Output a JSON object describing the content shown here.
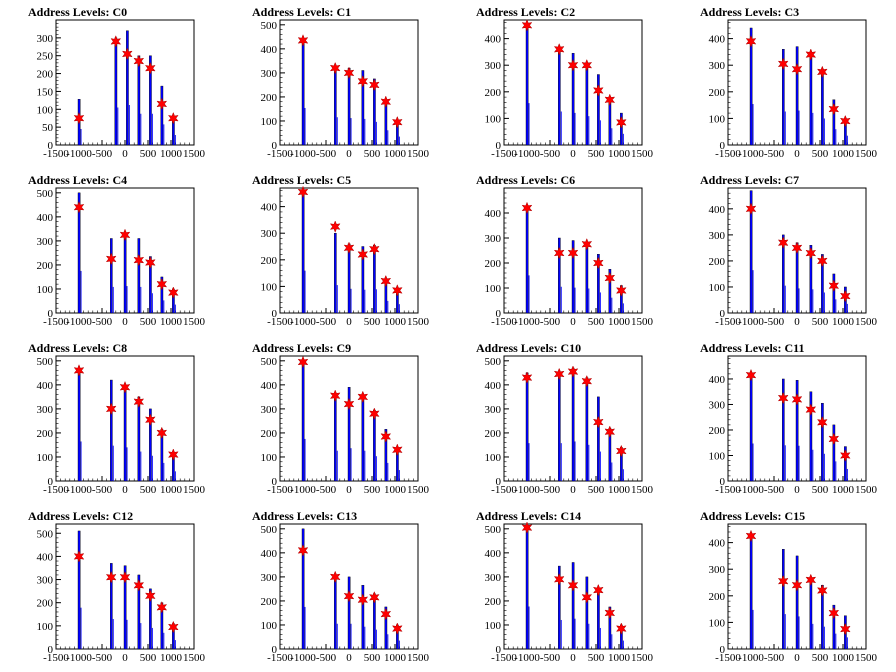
{
  "chart_data": [
    {
      "type": "bar",
      "title": "Address Levels: C0",
      "xlim": [
        -1500,
        1500
      ],
      "ylim": [
        0,
        350
      ],
      "yticks": [
        0,
        50,
        100,
        150,
        200,
        250,
        300
      ],
      "xticks": [
        -1500,
        -1000,
        -500,
        0,
        500,
        1000,
        1500
      ],
      "xtick_labels": [
        "-1500",
        "-1000",
        "-500",
        "0",
        "500",
        "1000",
        "1500"
      ],
      "series": [
        {
          "x": [
            -1000,
            -200,
            50,
            300,
            550,
            800,
            1050
          ],
          "values": [
            128,
            300,
            320,
            250,
            250,
            165,
            80
          ]
        }
      ],
      "markers": [
        {
          "x": [
            -1000,
            -200,
            50,
            300,
            550,
            800,
            1050
          ],
          "values": [
            75,
            290,
            255,
            235,
            215,
            115,
            75
          ]
        }
      ]
    },
    {
      "type": "bar",
      "title": "Address Levels: C1",
      "xlim": [
        -1500,
        1500
      ],
      "ylim": [
        0,
        520
      ],
      "yticks": [
        0,
        100,
        200,
        300,
        400,
        500
      ],
      "xticks": [
        -1500,
        -1000,
        -500,
        0,
        500,
        1000,
        1500
      ],
      "xtick_labels": [
        "-1500",
        "-1000",
        "-500",
        "0",
        "500",
        "1000",
        "1500"
      ],
      "series": [
        {
          "x": [
            -1000,
            -300,
            0,
            300,
            550,
            800,
            1050
          ],
          "values": [
            440,
            330,
            320,
            310,
            275,
            175,
            100
          ]
        }
      ],
      "markers": [
        {
          "x": [
            -1000,
            -300,
            0,
            300,
            550,
            800,
            1050
          ],
          "values": [
            435,
            320,
            300,
            265,
            250,
            180,
            95
          ]
        }
      ]
    },
    {
      "type": "bar",
      "title": "Address Levels: C2",
      "xlim": [
        -1500,
        1500
      ],
      "ylim": [
        0,
        470
      ],
      "yticks": [
        0,
        100,
        200,
        300,
        400
      ],
      "xticks": [
        -1500,
        -1000,
        -500,
        0,
        500,
        1000,
        1500
      ],
      "xtick_labels": [
        "-1500",
        "-1000",
        "-500",
        "0",
        "500",
        "1000",
        "1500"
      ],
      "series": [
        {
          "x": [
            -1000,
            -300,
            0,
            300,
            550,
            800,
            1050
          ],
          "values": [
            450,
            360,
            345,
            310,
            265,
            180,
            120
          ]
        }
      ],
      "markers": [
        {
          "x": [
            -1000,
            -300,
            0,
            300,
            550,
            800,
            1050
          ],
          "values": [
            450,
            360,
            300,
            300,
            205,
            170,
            85
          ]
        }
      ]
    },
    {
      "type": "bar",
      "title": "Address Levels: C3",
      "xlim": [
        -1500,
        1500
      ],
      "ylim": [
        0,
        470
      ],
      "yticks": [
        0,
        100,
        200,
        300,
        400
      ],
      "xticks": [
        -1500,
        -1000,
        -500,
        0,
        500,
        1000,
        1500
      ],
      "xtick_labels": [
        "-1500",
        "-1000",
        "-500",
        "0",
        "500",
        "1000",
        "1500"
      ],
      "series": [
        {
          "x": [
            -1000,
            -300,
            0,
            300,
            550,
            800,
            1050
          ],
          "values": [
            440,
            360,
            370,
            345,
            285,
            170,
            100
          ]
        }
      ],
      "markers": [
        {
          "x": [
            -1000,
            -300,
            0,
            300,
            550,
            800,
            1050
          ],
          "values": [
            390,
            305,
            285,
            340,
            275,
            135,
            90
          ]
        }
      ]
    },
    {
      "type": "bar",
      "title": "Address Levels: C4",
      "xlim": [
        -1500,
        1500
      ],
      "ylim": [
        0,
        520
      ],
      "yticks": [
        0,
        100,
        200,
        300,
        400,
        500
      ],
      "xticks": [
        -1500,
        -1000,
        -500,
        0,
        500,
        1000,
        1500
      ],
      "xtick_labels": [
        "-1500",
        "-1000",
        "-500",
        "0",
        "500",
        "1000",
        "1500"
      ],
      "series": [
        {
          "x": [
            -1000,
            -300,
            0,
            300,
            550,
            800,
            1050
          ],
          "values": [
            500,
            310,
            320,
            310,
            235,
            150,
            100
          ]
        }
      ],
      "markers": [
        {
          "x": [
            -1000,
            -300,
            0,
            300,
            550,
            800,
            1050
          ],
          "values": [
            440,
            225,
            325,
            220,
            210,
            120,
            85
          ]
        }
      ]
    },
    {
      "type": "bar",
      "title": "Address Levels: C5",
      "xlim": [
        -1500,
        1500
      ],
      "ylim": [
        0,
        470
      ],
      "yticks": [
        0,
        100,
        200,
        300,
        400
      ],
      "xticks": [
        -1500,
        -1000,
        -500,
        0,
        500,
        1000,
        1500
      ],
      "xtick_labels": [
        "-1500",
        "-1000",
        "-500",
        "0",
        "500",
        "1000",
        "1500"
      ],
      "series": [
        {
          "x": [
            -1000,
            -300,
            0,
            300,
            550,
            800,
            1050
          ],
          "values": [
            455,
            300,
            260,
            250,
            255,
            130,
            95
          ]
        }
      ],
      "markers": [
        {
          "x": [
            -1000,
            -300,
            0,
            300,
            550,
            800,
            1050
          ],
          "values": [
            455,
            325,
            245,
            220,
            240,
            120,
            85
          ]
        }
      ]
    },
    {
      "type": "bar",
      "title": "Address Levels: C6",
      "xlim": [
        -1500,
        1500
      ],
      "ylim": [
        0,
        500
      ],
      "yticks": [
        0,
        100,
        200,
        300,
        400
      ],
      "xticks": [
        -1500,
        -1000,
        -500,
        0,
        500,
        1000,
        1500
      ],
      "xtick_labels": [
        "-1500",
        "-1000",
        "-500",
        "0",
        "500",
        "1000",
        "1500"
      ],
      "series": [
        {
          "x": [
            -1000,
            -300,
            0,
            300,
            550,
            800,
            1050
          ],
          "values": [
            430,
            300,
            290,
            280,
            235,
            175,
            110
          ]
        }
      ],
      "markers": [
        {
          "x": [
            -1000,
            -300,
            0,
            300,
            550,
            800,
            1050
          ],
          "values": [
            420,
            240,
            240,
            275,
            200,
            140,
            90
          ]
        }
      ]
    },
    {
      "type": "bar",
      "title": "Address Levels: C7",
      "xlim": [
        -1500,
        1500
      ],
      "ylim": [
        0,
        480
      ],
      "yticks": [
        0,
        100,
        200,
        300,
        400
      ],
      "xticks": [
        -1500,
        -1000,
        -500,
        0,
        500,
        1000,
        1500
      ],
      "xtick_labels": [
        "-1500",
        "-1000",
        "-500",
        "0",
        "500",
        "1000",
        "1500"
      ],
      "series": [
        {
          "x": [
            -1000,
            -300,
            0,
            300,
            550,
            800,
            1050
          ],
          "values": [
            470,
            300,
            270,
            260,
            225,
            150,
            100
          ]
        }
      ],
      "markers": [
        {
          "x": [
            -1000,
            -300,
            0,
            300,
            550,
            800,
            1050
          ],
          "values": [
            400,
            270,
            250,
            230,
            200,
            105,
            65
          ]
        }
      ]
    },
    {
      "type": "bar",
      "title": "Address Levels: C8",
      "xlim": [
        -1500,
        1500
      ],
      "ylim": [
        0,
        520
      ],
      "yticks": [
        0,
        100,
        200,
        300,
        400,
        500
      ],
      "xticks": [
        -1500,
        -1000,
        -500,
        0,
        500,
        1000,
        1500
      ],
      "xtick_labels": [
        "-1500",
        "-1000",
        "-500",
        "0",
        "500",
        "1000",
        "1500"
      ],
      "series": [
        {
          "x": [
            -1000,
            -300,
            0,
            300,
            550,
            800,
            1050
          ],
          "values": [
            470,
            420,
            400,
            350,
            300,
            215,
            115
          ]
        }
      ],
      "markers": [
        {
          "x": [
            -1000,
            -300,
            0,
            300,
            550,
            800,
            1050
          ],
          "values": [
            460,
            300,
            390,
            330,
            255,
            200,
            110
          ]
        }
      ]
    },
    {
      "type": "bar",
      "title": "Address Levels: C9",
      "xlim": [
        -1500,
        1500
      ],
      "ylim": [
        0,
        520
      ],
      "yticks": [
        0,
        100,
        200,
        300,
        400,
        500
      ],
      "xticks": [
        -1500,
        -1000,
        -500,
        0,
        500,
        1000,
        1500
      ],
      "xtick_labels": [
        "-1500",
        "-1000",
        "-500",
        "0",
        "500",
        "1000",
        "1500"
      ],
      "series": [
        {
          "x": [
            -1000,
            -300,
            0,
            300,
            550,
            800,
            1050
          ],
          "values": [
            500,
            360,
            390,
            360,
            295,
            215,
            130
          ]
        }
      ],
      "markers": [
        {
          "x": [
            -1000,
            -300,
            0,
            300,
            550,
            800,
            1050
          ],
          "values": [
            495,
            355,
            320,
            350,
            280,
            185,
            130
          ]
        }
      ]
    },
    {
      "type": "bar",
      "title": "Address Levels: C10",
      "xlim": [
        -1500,
        1500
      ],
      "ylim": [
        0,
        520
      ],
      "yticks": [
        0,
        100,
        200,
        300,
        400,
        500
      ],
      "xticks": [
        -1500,
        -1000,
        -500,
        0,
        500,
        1000,
        1500
      ],
      "xtick_labels": [
        "-1500",
        "-1000",
        "-500",
        "0",
        "500",
        "1000",
        "1500"
      ],
      "series": [
        {
          "x": [
            -1000,
            -300,
            0,
            300,
            550,
            800,
            1050
          ],
          "values": [
            450,
            450,
            470,
            430,
            350,
            220,
            140
          ]
        }
      ],
      "markers": [
        {
          "x": [
            -1000,
            -300,
            0,
            300,
            550,
            800,
            1050
          ],
          "values": [
            430,
            445,
            455,
            415,
            245,
            205,
            125
          ]
        }
      ]
    },
    {
      "type": "bar",
      "title": "Address Levels: C11",
      "xlim": [
        -1500,
        1500
      ],
      "ylim": [
        0,
        490
      ],
      "yticks": [
        0,
        100,
        200,
        300,
        400
      ],
      "xticks": [
        -1500,
        -1000,
        -500,
        0,
        500,
        1000,
        1500
      ],
      "xtick_labels": [
        "-1500",
        "-1000",
        "-500",
        "0",
        "500",
        "1000",
        "1500"
      ],
      "series": [
        {
          "x": [
            -1000,
            -300,
            0,
            300,
            550,
            800,
            1050
          ],
          "values": [
            420,
            400,
            395,
            350,
            305,
            220,
            135
          ]
        }
      ],
      "markers": [
        {
          "x": [
            -1000,
            -300,
            0,
            300,
            550,
            800,
            1050
          ],
          "values": [
            415,
            325,
            320,
            280,
            230,
            165,
            100
          ]
        }
      ]
    },
    {
      "type": "bar",
      "title": "Address Levels: C12",
      "xlim": [
        -1500,
        1500
      ],
      "ylim": [
        0,
        540
      ],
      "yticks": [
        0,
        100,
        200,
        300,
        400,
        500
      ],
      "xticks": [
        -1500,
        -1000,
        -500,
        0,
        500,
        1000,
        1500
      ],
      "xtick_labels": [
        "-1500",
        "-1000",
        "-500",
        "0",
        "500",
        "1000",
        "1500"
      ],
      "series": [
        {
          "x": [
            -1000,
            -300,
            0,
            300,
            550,
            800,
            1050
          ],
          "values": [
            510,
            370,
            360,
            320,
            260,
            200,
            110
          ]
        }
      ],
      "markers": [
        {
          "x": [
            -1000,
            -300,
            0,
            300,
            550,
            800,
            1050
          ],
          "values": [
            400,
            310,
            310,
            275,
            230,
            180,
            95
          ]
        }
      ]
    },
    {
      "type": "bar",
      "title": "Address Levels: C13",
      "xlim": [
        -1500,
        1500
      ],
      "ylim": [
        0,
        520
      ],
      "yticks": [
        0,
        100,
        200,
        300,
        400,
        500
      ],
      "xticks": [
        -1500,
        -1000,
        -500,
        0,
        500,
        1000,
        1500
      ],
      "xtick_labels": [
        "-1500",
        "-1000",
        "-500",
        "0",
        "500",
        "1000",
        "1500"
      ],
      "series": [
        {
          "x": [
            -1000,
            -300,
            0,
            300,
            550,
            800,
            1050
          ],
          "values": [
            500,
            300,
            300,
            265,
            230,
            175,
            100
          ]
        }
      ],
      "markers": [
        {
          "x": [
            -1000,
            -300,
            0,
            300,
            550,
            800,
            1050
          ],
          "values": [
            410,
            300,
            220,
            205,
            215,
            145,
            85
          ]
        }
      ]
    },
    {
      "type": "bar",
      "title": "Address Levels: C14",
      "xlim": [
        -1500,
        1500
      ],
      "ylim": [
        0,
        520
      ],
      "yticks": [
        0,
        100,
        200,
        300,
        400,
        500
      ],
      "xticks": [
        -1500,
        -1000,
        -500,
        0,
        500,
        1000,
        1500
      ],
      "xtick_labels": [
        "-1500",
        "-1000",
        "-500",
        "0",
        "500",
        "1000",
        "1500"
      ],
      "series": [
        {
          "x": [
            -1000,
            -300,
            0,
            300,
            550,
            800,
            1050
          ],
          "values": [
            505,
            345,
            360,
            300,
            250,
            175,
            100
          ]
        }
      ],
      "markers": [
        {
          "x": [
            -1000,
            -300,
            0,
            300,
            550,
            800,
            1050
          ],
          "values": [
            505,
            290,
            265,
            215,
            245,
            150,
            85
          ]
        }
      ]
    },
    {
      "type": "bar",
      "title": "Address Levels: C15",
      "xlim": [
        -1500,
        1500
      ],
      "ylim": [
        0,
        470
      ],
      "yticks": [
        0,
        100,
        200,
        300,
        400
      ],
      "xticks": [
        -1500,
        -1000,
        -500,
        0,
        500,
        1000,
        1500
      ],
      "xtick_labels": [
        "-1500",
        "-1000",
        "-500",
        "0",
        "500",
        "1000",
        "1500"
      ],
      "series": [
        {
          "x": [
            -1000,
            -300,
            0,
            300,
            550,
            800,
            1050
          ],
          "values": [
            420,
            375,
            350,
            270,
            240,
            165,
            125
          ]
        }
      ],
      "markers": [
        {
          "x": [
            -1000,
            -300,
            0,
            300,
            550,
            800,
            1050
          ],
          "values": [
            425,
            255,
            240,
            260,
            220,
            135,
            75
          ]
        }
      ]
    }
  ],
  "colors": {
    "bar": "#0000ff",
    "bar_outline": "#000000",
    "marker": "#ff0000",
    "axis": "#000000"
  },
  "legend": "none",
  "grid": false
}
